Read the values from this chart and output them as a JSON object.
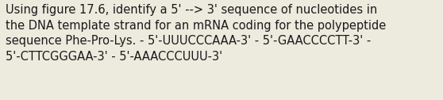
{
  "lines": [
    "Using figure 17.6, identify a 5' --> 3' sequence of nucleotides in",
    "the DNA template strand for an mRNA coding for the polypeptide",
    "sequence Phe-Pro-Lys. - 5'-UUUCCCAAA-3' - 5'-GAACCCCTT-3' -",
    "5'-CTTCGGGAA-3' - 5'-AAACCCUUU-3'"
  ],
  "background_color": "#edeade",
  "text_color": "#1a1a1a",
  "fontsize": 10.5,
  "font_family": "DejaVu Sans",
  "fig_width": 5.58,
  "fig_height": 1.26,
  "dpi": 100
}
